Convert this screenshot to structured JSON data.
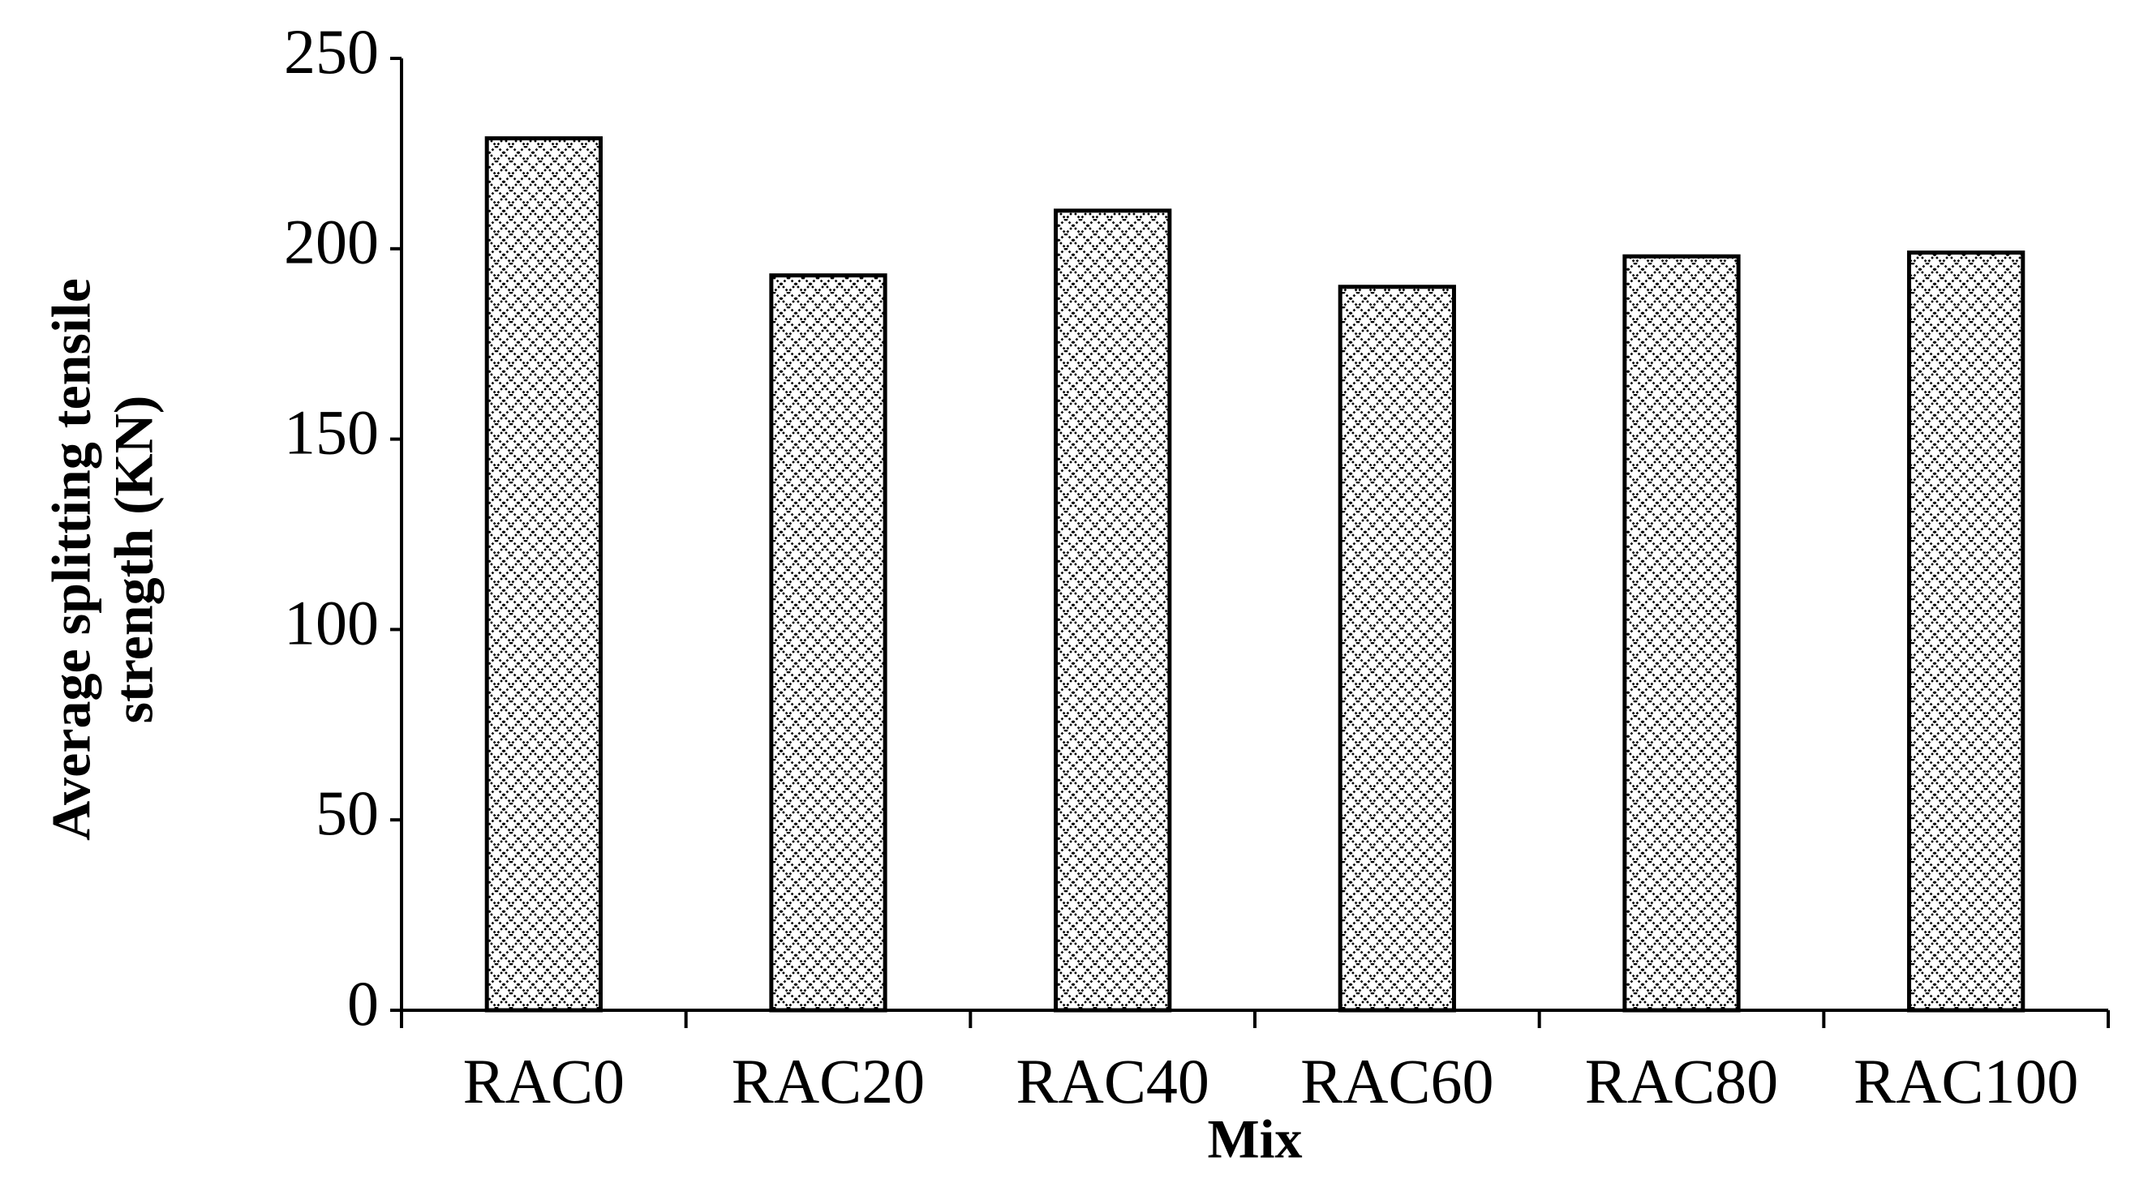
{
  "chart_data": {
    "type": "bar",
    "ylabel": [
      "Average splitting tensile",
      "strength (KN)"
    ],
    "xlabel": "Mix",
    "categories": [
      "RAC0",
      "RAC20",
      "RAC40",
      "RAC60",
      "RAC80",
      "RAC100"
    ],
    "values": [
      229,
      193,
      210,
      190,
      198,
      199
    ],
    "color": "#000000",
    "ylim": [
      0,
      250
    ],
    "yticks": [
      0,
      50,
      100,
      150,
      200,
      250
    ],
    "grid": false
  }
}
